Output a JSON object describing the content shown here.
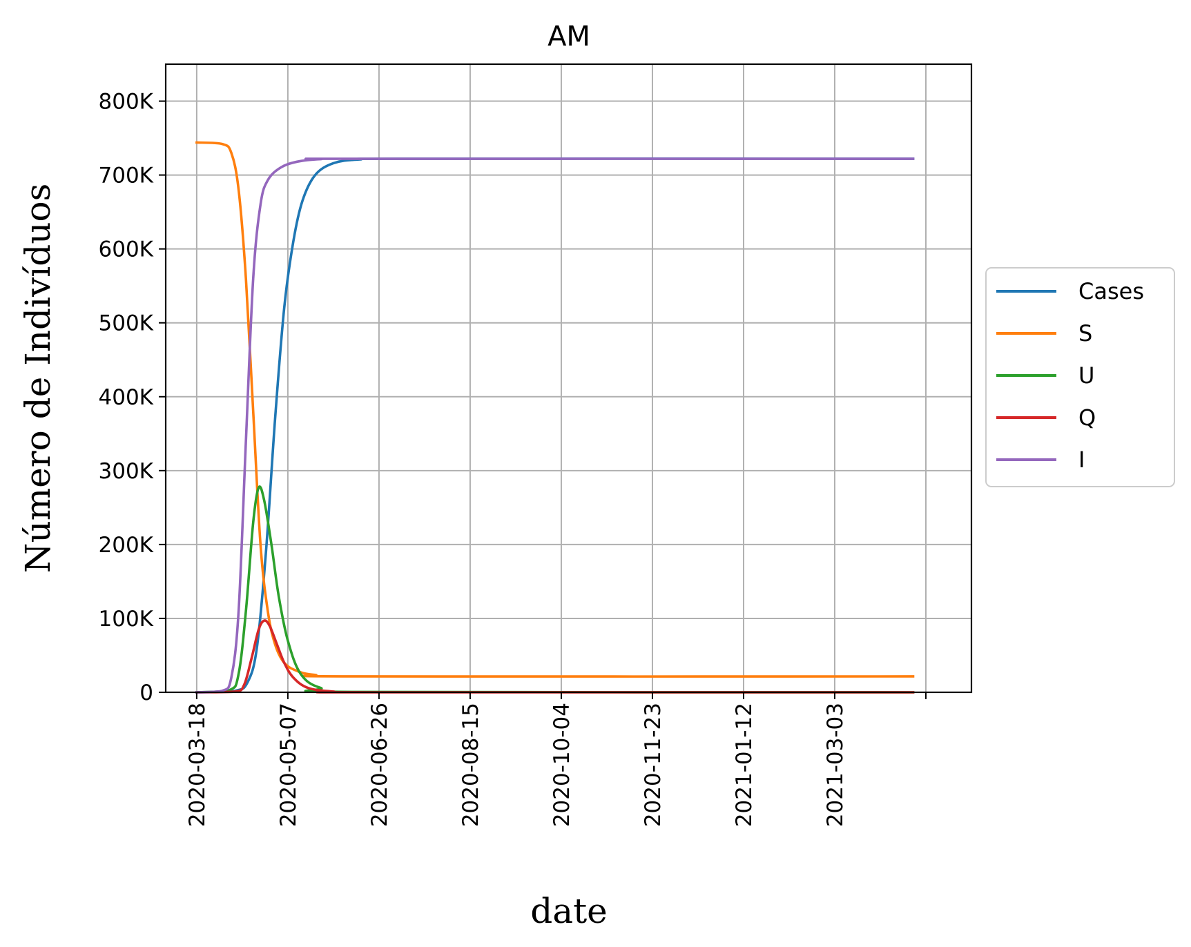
{
  "chart_data": {
    "type": "line",
    "title": "AM",
    "xlabel": "date",
    "ylabel": "Número de Indivíduos",
    "xlim": [
      "2020-03-01",
      "2021-05-17"
    ],
    "ylim": [
      0,
      850000
    ],
    "grid": true,
    "legend_position": "center-right, outside plot",
    "x_ticks": [
      "2020-03-18",
      "2020-05-07",
      "2020-06-26",
      "2020-08-15",
      "2020-10-04",
      "2020-11-23",
      "2021-01-12",
      "2021-03-03",
      "2021-04-22"
    ],
    "x_tick_labels": [
      "2020-03-18",
      "2020-05-07",
      "2020-06-26",
      "2020-08-15",
      "2020-10-04",
      "2020-11-23",
      "2021-01-12",
      "2021-03-03",
      ""
    ],
    "y_ticks": [
      0,
      100000,
      200000,
      300000,
      400000,
      500000,
      600000,
      700000,
      800000
    ],
    "y_tick_labels": [
      "0",
      "100K",
      "200K",
      "300K",
      "400K",
      "500K",
      "600K",
      "700K",
      "800K"
    ],
    "series": [
      {
        "name": "Cases",
        "color": "#1f77b4",
        "points": [
          [
            "2020-03-18",
            0
          ],
          [
            "2020-04-08",
            2000
          ],
          [
            "2020-04-15",
            14000
          ],
          [
            "2020-04-20",
            60000
          ],
          [
            "2020-04-25",
            190000
          ],
          [
            "2020-04-30",
            370000
          ],
          [
            "2020-05-05",
            520000
          ],
          [
            "2020-05-10",
            610000
          ],
          [
            "2020-05-15",
            665000
          ],
          [
            "2020-05-22",
            700000
          ],
          [
            "2020-06-01",
            716000
          ],
          [
            "2020-06-15",
            721000
          ],
          [
            "2020-07-15",
            722000
          ],
          [
            "2021-04-15",
            722000
          ]
        ]
      },
      {
        "name": "S",
        "color": "#ff7f0e",
        "points": [
          [
            "2020-03-18",
            744000
          ],
          [
            "2020-04-01",
            742000
          ],
          [
            "2020-04-06",
            730000
          ],
          [
            "2020-04-10",
            680000
          ],
          [
            "2020-04-14",
            560000
          ],
          [
            "2020-04-18",
            380000
          ],
          [
            "2020-04-22",
            200000
          ],
          [
            "2020-04-26",
            110000
          ],
          [
            "2020-04-30",
            65000
          ],
          [
            "2020-05-05",
            40000
          ],
          [
            "2020-05-12",
            29000
          ],
          [
            "2020-05-22",
            23500
          ],
          [
            "2020-06-15",
            21500
          ],
          [
            "2021-04-15",
            21500
          ]
        ]
      },
      {
        "name": "U",
        "color": "#2ca02c",
        "points": [
          [
            "2020-03-18",
            0
          ],
          [
            "2020-04-05",
            3000
          ],
          [
            "2020-04-10",
            25000
          ],
          [
            "2020-04-14",
            110000
          ],
          [
            "2020-04-18",
            230000
          ],
          [
            "2020-04-21",
            277000
          ],
          [
            "2020-04-24",
            260000
          ],
          [
            "2020-04-28",
            200000
          ],
          [
            "2020-05-02",
            130000
          ],
          [
            "2020-05-07",
            70000
          ],
          [
            "2020-05-14",
            25000
          ],
          [
            "2020-05-25",
            6000
          ],
          [
            "2020-06-15",
            500
          ],
          [
            "2021-04-15",
            0
          ]
        ]
      },
      {
        "name": "Q",
        "color": "#d62728",
        "points": [
          [
            "2020-03-18",
            0
          ],
          [
            "2020-04-08",
            1000
          ],
          [
            "2020-04-13",
            10000
          ],
          [
            "2020-04-17",
            45000
          ],
          [
            "2020-04-21",
            85000
          ],
          [
            "2020-04-24",
            97000
          ],
          [
            "2020-04-27",
            90000
          ],
          [
            "2020-05-01",
            65000
          ],
          [
            "2020-05-05",
            40000
          ],
          [
            "2020-05-10",
            20000
          ],
          [
            "2020-05-18",
            6000
          ],
          [
            "2020-06-01",
            1000
          ],
          [
            "2020-06-20",
            0
          ],
          [
            "2021-04-15",
            0
          ]
        ]
      },
      {
        "name": "I",
        "color": "#9467bd",
        "points": [
          [
            "2020-03-18",
            0
          ],
          [
            "2020-04-01",
            2000
          ],
          [
            "2020-04-06",
            20000
          ],
          [
            "2020-04-10",
            110000
          ],
          [
            "2020-04-14",
            340000
          ],
          [
            "2020-04-18",
            560000
          ],
          [
            "2020-04-22",
            660000
          ],
          [
            "2020-04-26",
            693000
          ],
          [
            "2020-05-03",
            710000
          ],
          [
            "2020-05-12",
            718000
          ],
          [
            "2020-05-25",
            721500
          ],
          [
            "2020-06-15",
            722000
          ],
          [
            "2021-04-15",
            722000
          ]
        ]
      }
    ]
  }
}
